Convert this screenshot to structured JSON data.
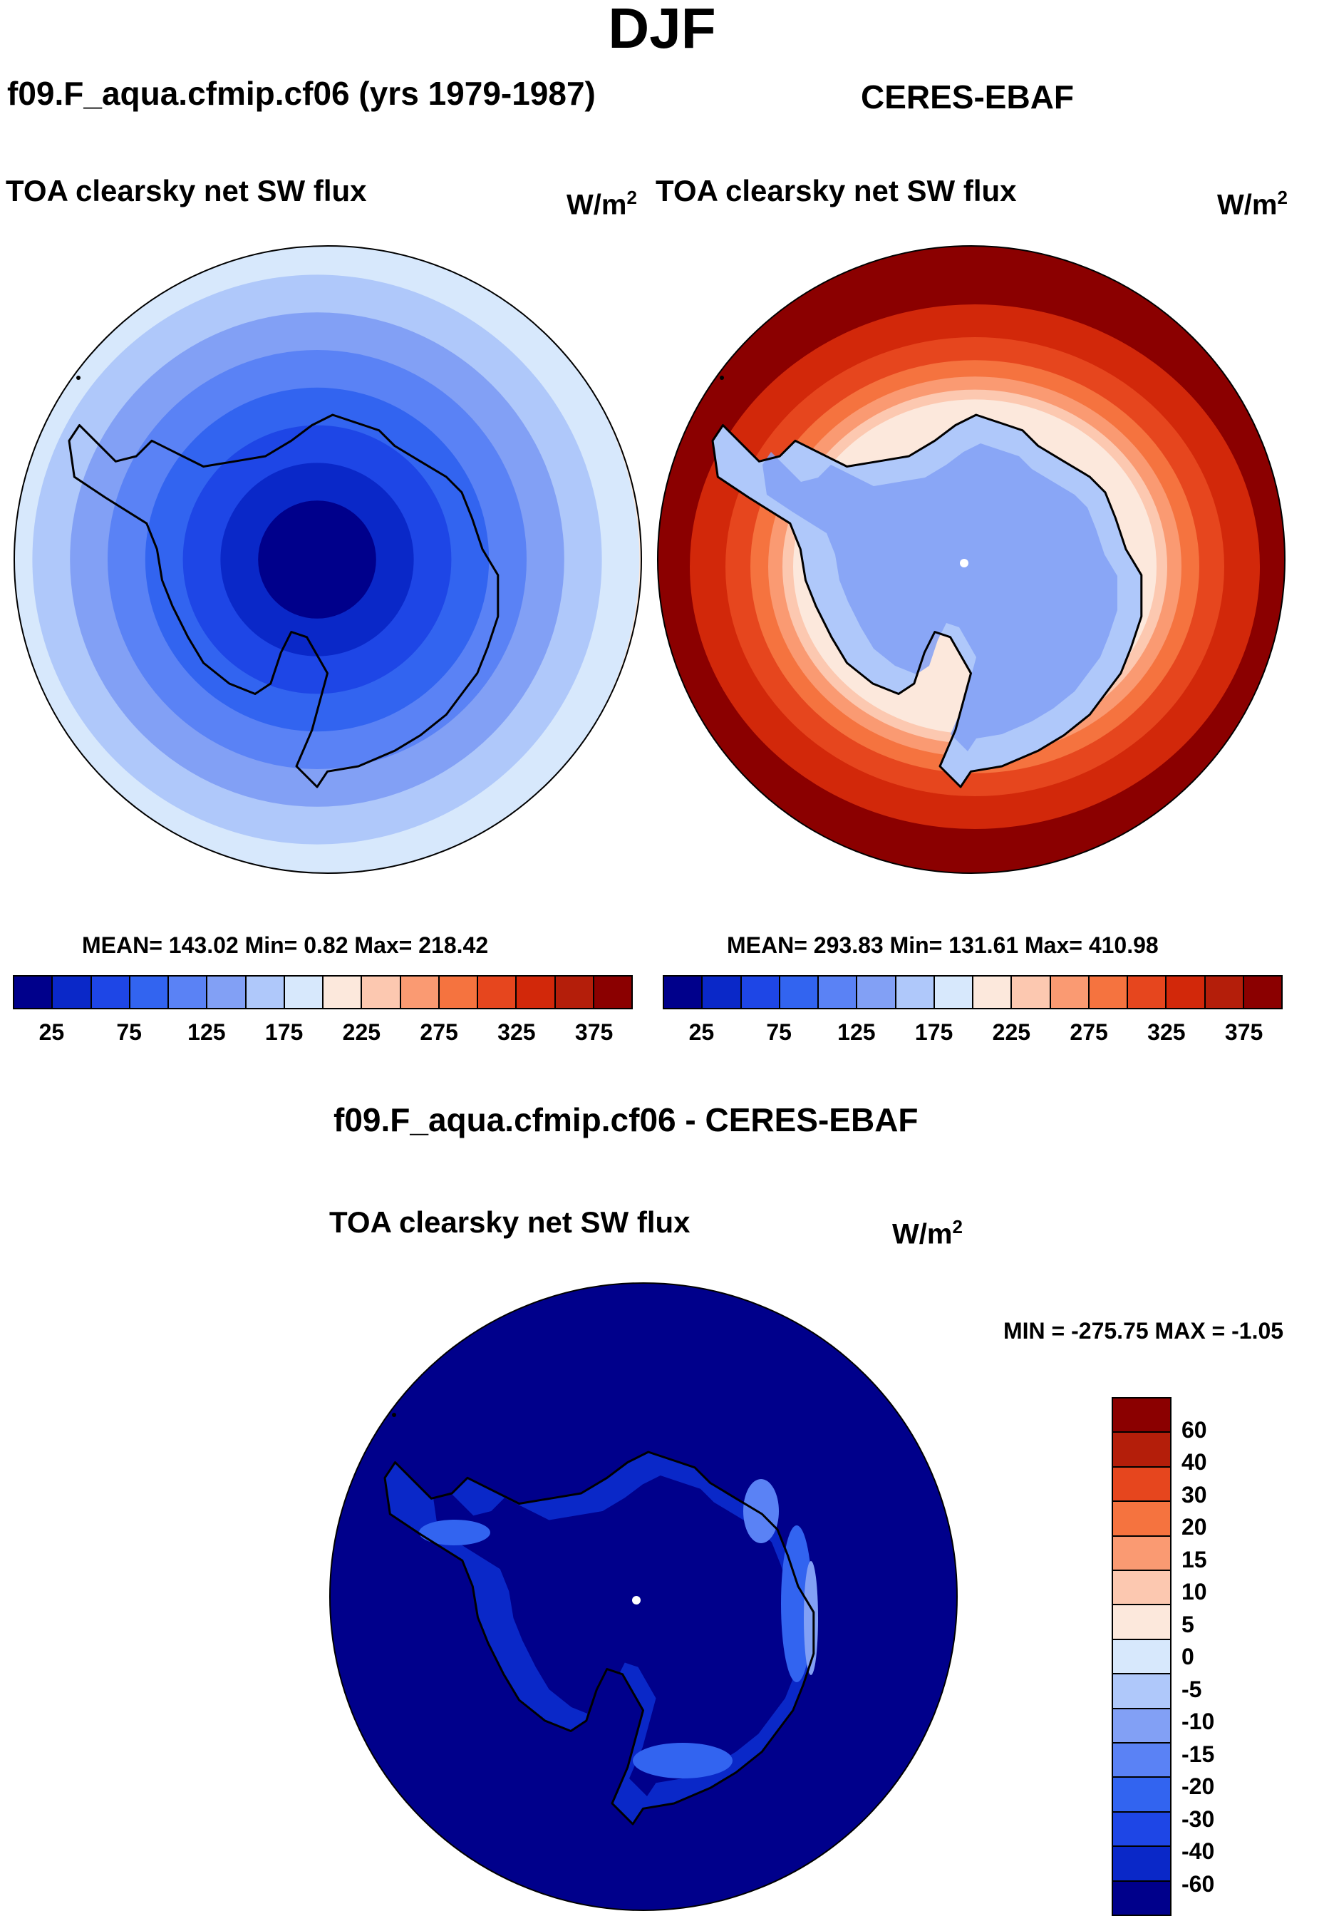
{
  "title": "DJF",
  "panels": {
    "model": {
      "title": "f09.F_aqua.cfmip.cf06 (yrs 1979-1987)",
      "variable": "TOA clearsky net SW flux",
      "units_base": "W/m",
      "units_exp": "2",
      "stats": "MEAN= 143.02  Min=   0.82  Max= 218.42"
    },
    "obs": {
      "title": "CERES-EBAF",
      "variable": "TOA clearsky net SW flux",
      "units_base": "W/m",
      "units_exp": "2",
      "stats": "MEAN= 293.83  Min= 131.61  Max= 410.98"
    },
    "diff": {
      "title": "f09.F_aqua.cfmip.cf06 - CERES-EBAF",
      "variable": "TOA clearsky net SW flux",
      "units_base": "W/m",
      "units_exp": "2",
      "stats": "MIN = -275.75 MAX =  -1.05"
    }
  },
  "colors": {
    "abs_scale": [
      "#00008b",
      "#0a28c8",
      "#1e46e6",
      "#3264f0",
      "#5a82f5",
      "#82a0f5",
      "#afc8fa",
      "#d7e8fc",
      "#fce8dc",
      "#fcc8b0",
      "#fa9a72",
      "#f5733f",
      "#e6461e",
      "#d2280a",
      "#b41e0a",
      "#8b0000"
    ],
    "diff_scale": [
      "#8b0000",
      "#b41e0a",
      "#e6461e",
      "#f5733f",
      "#fa9a72",
      "#fcc8b0",
      "#fce8dc",
      "#d7e8fc",
      "#afc8fa",
      "#82a0f5",
      "#5a82f5",
      "#3264f0",
      "#1e46e6",
      "#0a28c8",
      "#00008b"
    ],
    "coast": "#000000",
    "pole_marker": "#ffffff"
  },
  "chart_data": [
    {
      "type": "heatmap",
      "projection": "south polar stereographic",
      "title": "f09.F_aqua.cfmip.cf06 (yrs 1979-1987)",
      "variable": "TOA clearsky net SW flux",
      "units": "W/m2",
      "mean": 143.02,
      "min": 0.82,
      "max": 218.42,
      "levels": [
        25,
        50,
        75,
        100,
        125,
        150,
        175,
        200,
        225,
        250,
        275,
        300,
        325,
        350,
        375
      ],
      "tick_labels": [
        "25",
        "75",
        "125",
        "175",
        "225",
        "275",
        "325",
        "375"
      ],
      "ring_level_index_from_pole": [
        0,
        1,
        2,
        3,
        4,
        5,
        6,
        7,
        8
      ]
    },
    {
      "type": "heatmap",
      "projection": "south polar stereographic",
      "title": "CERES-EBAF",
      "variable": "TOA clearsky net SW flux",
      "units": "W/m2",
      "mean": 293.83,
      "min": 131.61,
      "max": 410.98,
      "levels": [
        25,
        50,
        75,
        100,
        125,
        150,
        175,
        200,
        225,
        250,
        275,
        300,
        325,
        350,
        375
      ],
      "tick_labels": [
        "25",
        "75",
        "125",
        "175",
        "225",
        "275",
        "325",
        "375"
      ],
      "ring_level_index_from_pole": [
        5,
        5,
        5,
        5,
        6,
        9,
        11,
        13,
        15,
        15
      ]
    },
    {
      "type": "heatmap",
      "projection": "south polar stereographic",
      "title": "f09.F_aqua.cfmip.cf06 - CERES-EBAF",
      "variable": "TOA clearsky net SW flux",
      "units": "W/m2",
      "min": -275.75,
      "max": -1.05,
      "levels": [
        60,
        40,
        30,
        20,
        15,
        10,
        5,
        0,
        -5,
        -10,
        -15,
        -20,
        -30,
        -40,
        -60
      ],
      "tick_labels": [
        "60",
        "40",
        "30",
        "20",
        "15",
        "10",
        "5",
        "0",
        "-5",
        "-10",
        "-15",
        "-20",
        "-30",
        "-40",
        "-60"
      ]
    }
  ]
}
